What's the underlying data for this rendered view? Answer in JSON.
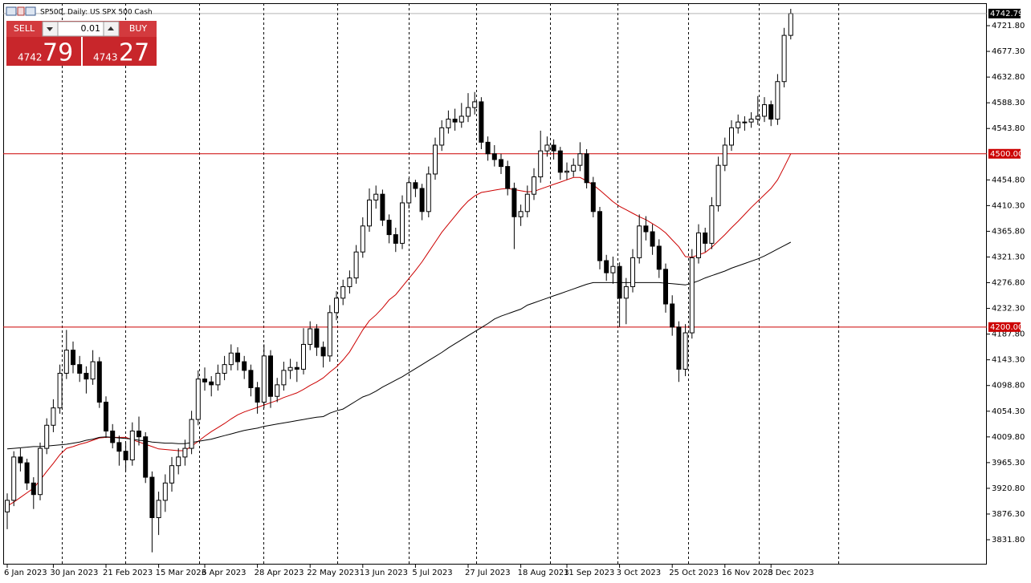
{
  "header": {
    "title": "SP500, Daily:  US SPX 500 Cash"
  },
  "trade_panel": {
    "sell": "SELL",
    "buy": "BUY",
    "volume": "0.01",
    "bid_main": "4742",
    "bid_big": "79",
    "ask_main": "4743",
    "ask_big": "27"
  },
  "chart_data": {
    "type": "candlestick",
    "categories": [
      "6 Jan 2023",
      null,
      null,
      null,
      null,
      null,
      null,
      "30 Jan 2023",
      null,
      null,
      null,
      null,
      null,
      null,
      null,
      "21 Feb 2023",
      null,
      null,
      null,
      null,
      null,
      null,
      null,
      "15 Mar 2023",
      null,
      null,
      null,
      null,
      null,
      null,
      "6 Apr 2023",
      null,
      null,
      null,
      null,
      null,
      null,
      null,
      "28 Apr 2023",
      null,
      null,
      null,
      null,
      null,
      null,
      null,
      "22 May 2023",
      null,
      null,
      null,
      null,
      null,
      null,
      null,
      "13 Jun 2023",
      null,
      null,
      null,
      null,
      null,
      null,
      null,
      "5 Jul 2023",
      null,
      null,
      null,
      null,
      null,
      null,
      null,
      "27 Jul 2023",
      null,
      null,
      null,
      null,
      null,
      null,
      null,
      "18 Aug 2023",
      null,
      null,
      null,
      null,
      null,
      null,
      "11 Sep 2023",
      null,
      null,
      null,
      null,
      null,
      null,
      null,
      "3 Oct 2023",
      null,
      null,
      null,
      null,
      null,
      null,
      null,
      "25 Oct 2023",
      null,
      null,
      null,
      null,
      null,
      null,
      null,
      "16 Nov 2023",
      null,
      null,
      null,
      null,
      null,
      null,
      "8 Dec 2023",
      null,
      null,
      null
    ],
    "ohlc": [
      [
        3880,
        3912,
        3850,
        3900
      ],
      [
        3900,
        3985,
        3890,
        3975
      ],
      [
        3975,
        3990,
        3950,
        3965
      ],
      [
        3965,
        3972,
        3918,
        3930
      ],
      [
        3930,
        3940,
        3885,
        3910
      ],
      [
        3910,
        4000,
        3900,
        3990
      ],
      [
        3990,
        4042,
        3980,
        4030
      ],
      [
        4030,
        4075,
        4018,
        4060
      ],
      [
        4060,
        4135,
        4050,
        4120
      ],
      [
        4120,
        4195,
        4110,
        4160
      ],
      [
        4160,
        4175,
        4120,
        4135
      ],
      [
        4135,
        4150,
        4105,
        4120
      ],
      [
        4120,
        4132,
        4085,
        4110
      ],
      [
        4110,
        4160,
        4100,
        4140
      ],
      [
        4140,
        4148,
        4060,
        4070
      ],
      [
        4070,
        4080,
        4008,
        4020
      ],
      [
        4020,
        4032,
        3990,
        4000
      ],
      [
        4000,
        4012,
        3960,
        3985
      ],
      [
        3985,
        4000,
        3950,
        3970
      ],
      [
        3970,
        4035,
        3960,
        4020
      ],
      [
        4020,
        4045,
        3995,
        4010
      ],
      [
        4010,
        4018,
        3930,
        3940
      ],
      [
        3940,
        3950,
        3810,
        3870
      ],
      [
        3870,
        3915,
        3840,
        3900
      ],
      [
        3900,
        3945,
        3880,
        3930
      ],
      [
        3930,
        3975,
        3915,
        3960
      ],
      [
        3960,
        3990,
        3945,
        3975
      ],
      [
        3975,
        4005,
        3960,
        3990
      ],
      [
        3990,
        4055,
        3980,
        4040
      ],
      [
        4040,
        4125,
        4030,
        4110
      ],
      [
        4110,
        4130,
        4090,
        4105
      ],
      [
        4105,
        4115,
        4080,
        4100
      ],
      [
        4100,
        4135,
        4090,
        4120
      ],
      [
        4120,
        4150,
        4108,
        4135
      ],
      [
        4135,
        4170,
        4125,
        4155
      ],
      [
        4155,
        4165,
        4125,
        4140
      ],
      [
        4140,
        4150,
        4110,
        4125
      ],
      [
        4125,
        4135,
        4080,
        4095
      ],
      [
        4095,
        4105,
        4050,
        4070
      ],
      [
        4070,
        4170,
        4060,
        4150
      ],
      [
        4150,
        4160,
        4060,
        4080
      ],
      [
        4080,
        4112,
        4070,
        4100
      ],
      [
        4100,
        4140,
        4090,
        4125
      ],
      [
        4125,
        4145,
        4110,
        4130
      ],
      [
        4130,
        4140,
        4105,
        4127
      ],
      [
        4127,
        4198,
        4118,
        4170
      ],
      [
        4170,
        4210,
        4160,
        4197
      ],
      [
        4197,
        4205,
        4150,
        4165
      ],
      [
        4165,
        4175,
        4130,
        4150
      ],
      [
        4150,
        4238,
        4140,
        4225
      ],
      [
        4225,
        4262,
        4212,
        4250
      ],
      [
        4250,
        4282,
        4238,
        4270
      ],
      [
        4270,
        4298,
        4258,
        4285
      ],
      [
        4285,
        4342,
        4275,
        4330
      ],
      [
        4330,
        4390,
        4320,
        4375
      ],
      [
        4375,
        4440,
        4365,
        4420
      ],
      [
        4420,
        4445,
        4405,
        4430
      ],
      [
        4430,
        4438,
        4375,
        4385
      ],
      [
        4385,
        4395,
        4345,
        4360
      ],
      [
        4360,
        4372,
        4330,
        4345
      ],
      [
        4345,
        4428,
        4335,
        4415
      ],
      [
        4415,
        4458,
        4405,
        4450
      ],
      [
        4450,
        4455,
        4425,
        4440
      ],
      [
        4440,
        4448,
        4385,
        4400
      ],
      [
        4400,
        4478,
        4390,
        4465
      ],
      [
        4465,
        4528,
        4455,
        4515
      ],
      [
        4515,
        4558,
        4505,
        4545
      ],
      [
        4545,
        4575,
        4535,
        4560
      ],
      [
        4560,
        4578,
        4540,
        4555
      ],
      [
        4555,
        4588,
        4545,
        4565
      ],
      [
        4565,
        4605,
        4555,
        4580
      ],
      [
        4580,
        4607,
        4568,
        4590
      ],
      [
        4590,
        4598,
        4508,
        4520
      ],
      [
        4520,
        4530,
        4488,
        4500
      ],
      [
        4500,
        4515,
        4478,
        4490
      ],
      [
        4490,
        4500,
        4465,
        4478
      ],
      [
        4478,
        4488,
        4428,
        4440
      ],
      [
        4440,
        4450,
        4335,
        4391
      ],
      [
        4391,
        4412,
        4375,
        4400
      ],
      [
        4400,
        4445,
        4390,
        4430
      ],
      [
        4430,
        4475,
        4420,
        4460
      ],
      [
        4460,
        4540,
        4450,
        4505
      ],
      [
        4505,
        4530,
        4495,
        4515
      ],
      [
        4515,
        4525,
        4490,
        4505
      ],
      [
        4505,
        4512,
        4455,
        4468
      ],
      [
        4468,
        4485,
        4455,
        4470
      ],
      [
        4470,
        4492,
        4460,
        4480
      ],
      [
        4480,
        4520,
        4470,
        4500
      ],
      [
        4500,
        4508,
        4440,
        4450
      ],
      [
        4450,
        4460,
        4390,
        4400
      ],
      [
        4400,
        4408,
        4300,
        4315
      ],
      [
        4315,
        4325,
        4280,
        4294
      ],
      [
        4294,
        4322,
        4275,
        4305
      ],
      [
        4305,
        4312,
        4200,
        4250
      ],
      [
        4250,
        4285,
        4205,
        4270
      ],
      [
        4270,
        4335,
        4260,
        4320
      ],
      [
        4320,
        4395,
        4310,
        4375
      ],
      [
        4375,
        4392,
        4350,
        4365
      ],
      [
        4365,
        4378,
        4325,
        4340
      ],
      [
        4340,
        4352,
        4285,
        4300
      ],
      [
        4300,
        4310,
        4225,
        4240
      ],
      [
        4240,
        4255,
        4185,
        4200
      ],
      [
        4200,
        4210,
        4105,
        4127
      ],
      [
        4127,
        4205,
        4115,
        4190
      ],
      [
        4190,
        4335,
        4180,
        4320
      ],
      [
        4320,
        4378,
        4310,
        4363
      ],
      [
        4363,
        4372,
        4330,
        4345
      ],
      [
        4345,
        4425,
        4335,
        4410
      ],
      [
        4410,
        4495,
        4400,
        4480
      ],
      [
        4480,
        4528,
        4470,
        4515
      ],
      [
        4515,
        4558,
        4505,
        4545
      ],
      [
        4545,
        4568,
        4535,
        4555
      ],
      [
        4555,
        4565,
        4540,
        4555
      ],
      [
        4555,
        4572,
        4545,
        4560
      ],
      [
        4560,
        4600,
        4550,
        4565
      ],
      [
        4565,
        4598,
        4555,
        4585
      ],
      [
        4585,
        4592,
        4548,
        4560
      ],
      [
        4560,
        4638,
        4550,
        4625
      ],
      [
        4625,
        4718,
        4615,
        4705
      ],
      [
        4705,
        4751,
        4698,
        4742.79
      ]
    ],
    "series": [
      {
        "color": "#cc0000",
        "values": [
          3890,
          3897,
          3905,
          3913,
          3921,
          3935,
          3950,
          3964,
          3979,
          3990,
          3993,
          3997,
          4000,
          4004,
          4008,
          4009,
          4009,
          4009,
          4009,
          4005,
          4001,
          3997,
          3993,
          3989,
          3988,
          3987,
          3986,
          3986,
          3994,
          4002,
          4011,
          4019,
          4026,
          4033,
          4041,
          4048,
          4053,
          4057,
          4061,
          4065,
          4069,
          4073,
          4078,
          4082,
          4086,
          4092,
          4099,
          4105,
          4112,
          4122,
          4131,
          4143,
          4157,
          4176,
          4195,
          4211,
          4221,
          4233,
          4247,
          4256,
          4270,
          4284,
          4298,
          4313,
          4330,
          4347,
          4364,
          4378,
          4392,
          4406,
          4418,
          4427,
          4433,
          4435,
          4437,
          4439,
          4440,
          4438,
          4436,
          4434,
          4435,
          4439,
          4443,
          4447,
          4451,
          4455,
          4459,
          4459,
          4453,
          4446,
          4437,
          4427,
          4417,
          4409,
          4403,
          4397,
          4391,
          4386,
          4379,
          4372,
          4363,
          4351,
          4339,
          4322,
          4321,
          4325,
          4329,
          4338,
          4349,
          4360,
          4372,
          4383,
          4395,
          4407,
          4418,
          4429,
          4440,
          4455,
          4477,
          4500
        ]
      },
      {
        "color": "#000000",
        "values": [
          3989,
          3990,
          3991,
          3992,
          3993,
          3993,
          3994,
          3995,
          3996,
          3997,
          3999,
          4001,
          4004,
          4006,
          4009,
          4010,
          4009,
          4008,
          4007,
          4006,
          4004,
          4003,
          4001,
          4000,
          3999,
          3999,
          3998,
          3998,
          4000,
          4002,
          4004,
          4006,
          4009,
          4012,
          4015,
          4018,
          4021,
          4023,
          4025,
          4028,
          4030,
          4032,
          4034,
          4036,
          4038,
          4040,
          4042,
          4044,
          4045,
          4051,
          4055,
          4058,
          4065,
          4072,
          4079,
          4083,
          4089,
          4096,
          4102,
          4108,
          4114,
          4121,
          4128,
          4135,
          4142,
          4149,
          4156,
          4164,
          4171,
          4178,
          4185,
          4192,
          4199,
          4206,
          4214,
          4219,
          4223,
          4227,
          4231,
          4238,
          4242,
          4246,
          4250,
          4254,
          4258,
          4262,
          4266,
          4270,
          4274,
          4277,
          4277,
          4277,
          4277,
          4277,
          4277,
          4277,
          4277,
          4277,
          4277,
          4277,
          4276,
          4275,
          4274,
          4273,
          4276,
          4280,
          4285,
          4289,
          4293,
          4297,
          4302,
          4306,
          4310,
          4314,
          4318,
          4323,
          4329,
          4335,
          4341,
          4347
        ]
      }
    ],
    "hlines": [
      {
        "value": 4500,
        "label": "4500.00",
        "color": "#cc0000"
      },
      {
        "value": 4200,
        "label": "4200.00",
        "color": "#cc0000"
      }
    ],
    "last_price": 4742.79,
    "ylim": [
      3788.8,
      4760.7
    ],
    "yticks": [
      {
        "value": 4721.8,
        "label": "4721.80"
      },
      {
        "value": 4677.3,
        "label": "4677.30"
      },
      {
        "value": 4632.8,
        "label": "4632.80"
      },
      {
        "value": 4588.3,
        "label": "4588.30"
      },
      {
        "value": 4543.8,
        "label": "4543.80"
      },
      {
        "value": 4454.8,
        "label": "4454.80"
      },
      {
        "value": 4410.3,
        "label": "4410.30"
      },
      {
        "value": 4365.8,
        "label": "4365.80"
      },
      {
        "value": 4321.3,
        "label": "4321.30"
      },
      {
        "value": 4276.8,
        "label": "4276.80"
      },
      {
        "value": 4232.3,
        "label": "4232.30"
      },
      {
        "value": 4187.8,
        "label": "4187.80"
      },
      {
        "value": 4143.3,
        "label": "4143.30"
      },
      {
        "value": 4098.8,
        "label": "4098.80"
      },
      {
        "value": 4054.3,
        "label": "4054.30"
      },
      {
        "value": 4009.8,
        "label": "4009.80"
      },
      {
        "value": 3965.3,
        "label": "3965.30"
      },
      {
        "value": 3920.8,
        "label": "3920.80"
      },
      {
        "value": 3876.3,
        "label": "3876.30"
      },
      {
        "value": 3831.8,
        "label": "3831.80"
      }
    ]
  }
}
